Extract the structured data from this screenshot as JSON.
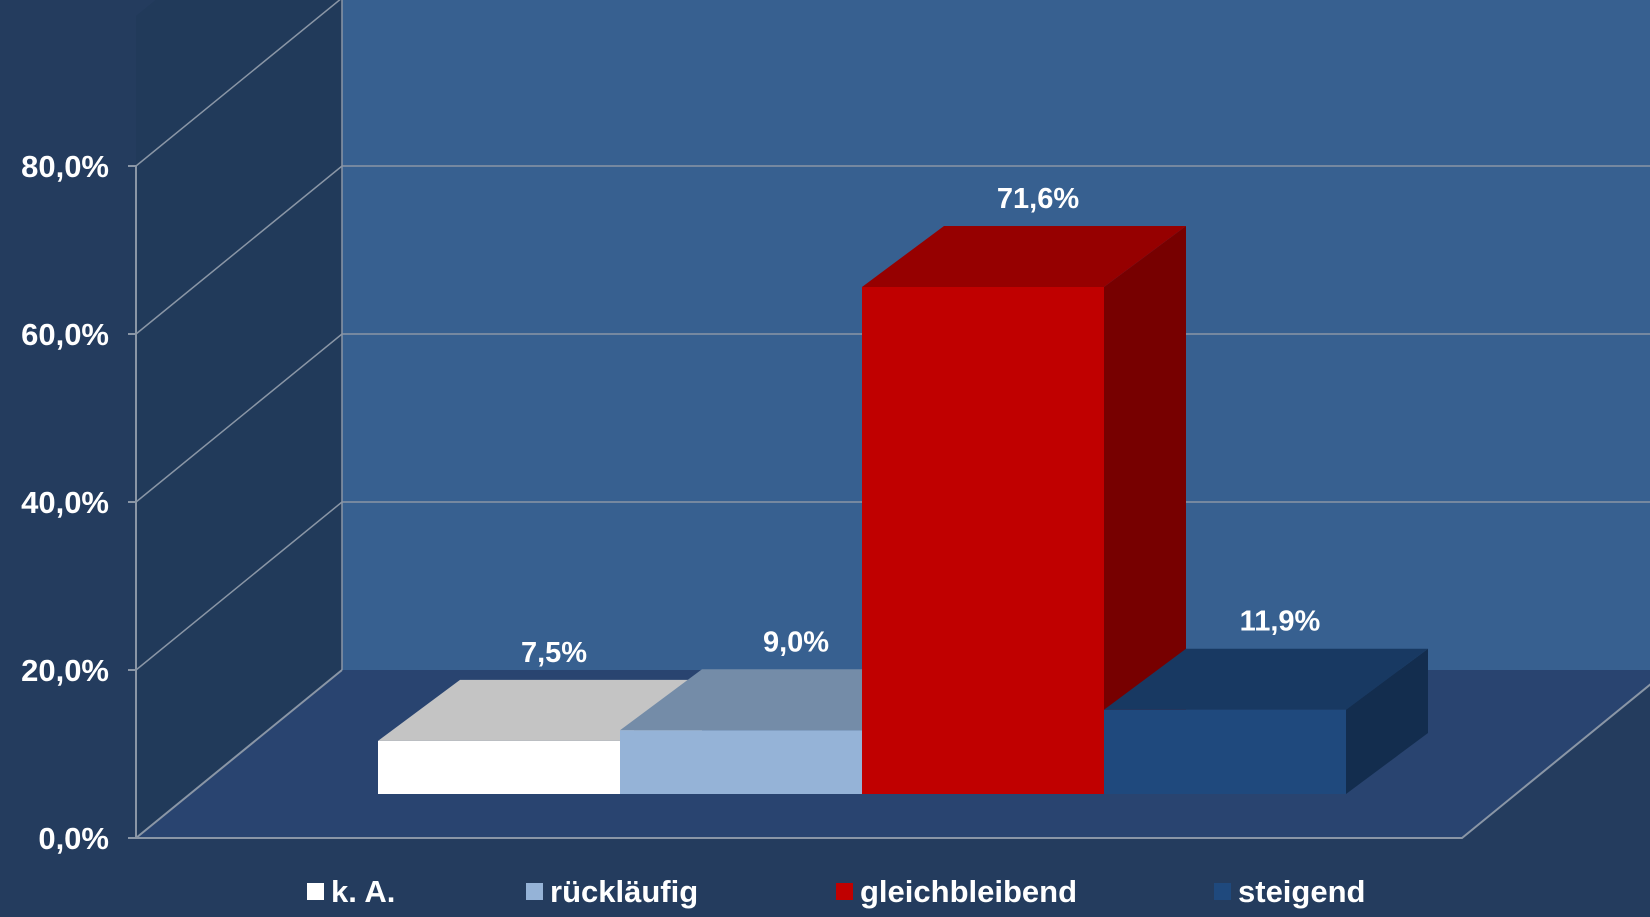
{
  "chart_data": {
    "type": "bar",
    "categories": [
      "k. A.",
      "rückläufig",
      "gleichbleibend",
      "steigend"
    ],
    "values": [
      7.5,
      9.0,
      71.6,
      11.9
    ],
    "data_labels": [
      "7,5%",
      "9,0%",
      "71,6%",
      "11,9%"
    ],
    "ylim": [
      0,
      80
    ],
    "yticks": [
      {
        "value": 0,
        "label": "0,0%"
      },
      {
        "value": 20,
        "label": "20,0%"
      },
      {
        "value": 40,
        "label": "40,0%"
      },
      {
        "value": 60,
        "label": "60,0%"
      },
      {
        "value": 80,
        "label": "80,0%"
      }
    ],
    "title": "",
    "xlabel": "",
    "ylabel": "",
    "grid": true,
    "legend": "bottom",
    "three_d": true,
    "colors": {
      "background": "#243c5e",
      "back_wall": "#376090",
      "side_wall": "#213a5a",
      "floor": "#294470",
      "grid_line": "#8a96a6",
      "series": [
        "#ffffff",
        "#95b3d7",
        "#c00000",
        "#1f497d"
      ]
    }
  }
}
